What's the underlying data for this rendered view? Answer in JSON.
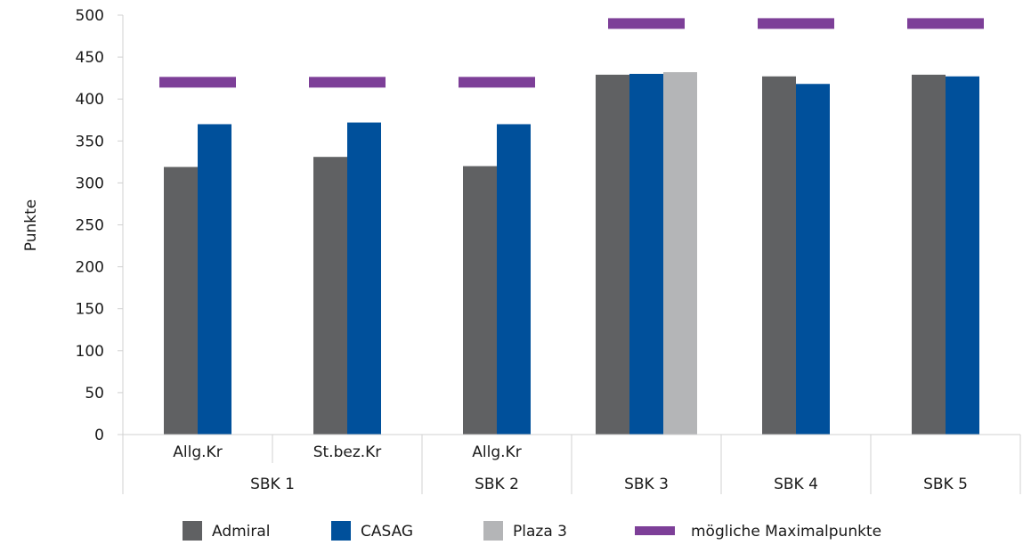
{
  "chart_data": {
    "type": "bar",
    "ylabel": "Punkte",
    "ylim": [
      0,
      500
    ],
    "ytick_step": 50,
    "groups": [
      {
        "sub": "Allg.Kr",
        "main": "SBK 1"
      },
      {
        "sub": "St.bez.Kr",
        "main": "SBK 1"
      },
      {
        "sub": "Allg.Kr",
        "main": "SBK 2"
      },
      {
        "sub": "",
        "main": "SBK 3"
      },
      {
        "sub": "",
        "main": "SBK 4"
      },
      {
        "sub": "",
        "main": "SBK 5"
      }
    ],
    "series": [
      {
        "name": "Admiral",
        "color": "#606163",
        "values": [
          319,
          331,
          320,
          429,
          427,
          429
        ]
      },
      {
        "name": "CASAG",
        "color": "#00509b",
        "values": [
          370,
          372,
          370,
          430,
          418,
          427
        ]
      },
      {
        "name": "Plaza 3",
        "color": "#b4b5b7",
        "values": [
          null,
          null,
          null,
          432,
          null,
          null
        ]
      }
    ],
    "max_series": {
      "name": "mögliche Maximalpunkte",
      "color": "#7d3f98",
      "values": [
        420,
        420,
        420,
        490,
        490,
        490
      ]
    },
    "grid": false,
    "legend": "bottom"
  }
}
